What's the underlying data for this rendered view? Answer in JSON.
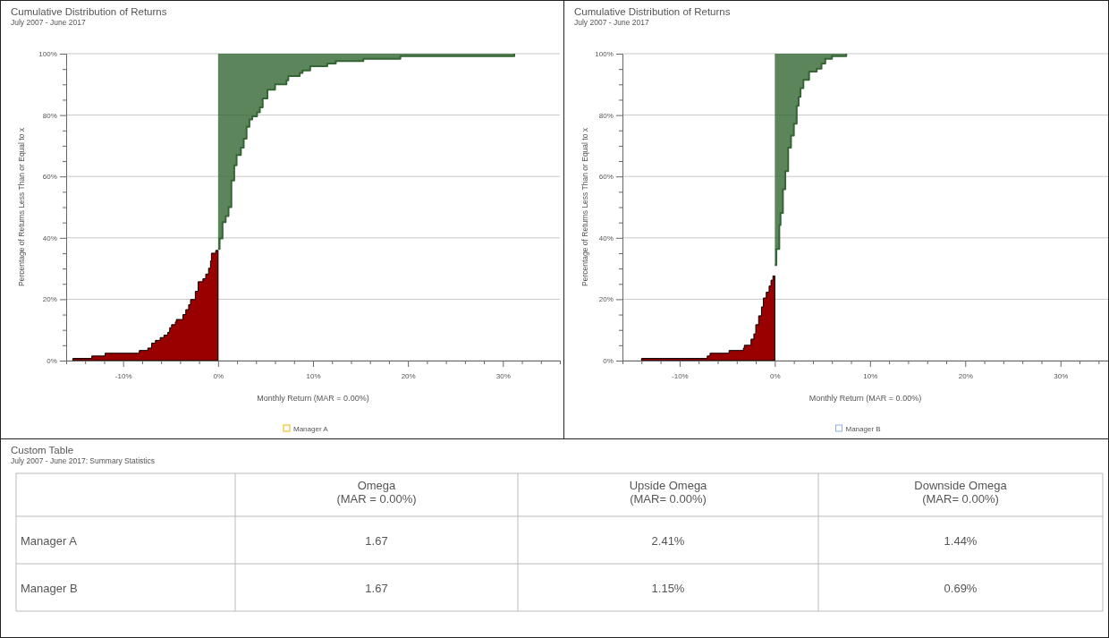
{
  "chart_data": [
    {
      "type": "step",
      "title": "Cumulative Distribution of Returns",
      "subtitle": "July 2007 - June 2017",
      "xlabel": "Monthly Return (MAR = 0.00%)",
      "ylabel": "Percentage of Returns Less Than or Equal to x",
      "annotations": [
        "Manager A"
      ],
      "grid": "y",
      "xlim": [
        -16,
        36
      ],
      "ylim": [
        0,
        100
      ],
      "xticks": [
        {
          "value": -16,
          "label": null
        },
        {
          "value": -14,
          "label": null
        },
        {
          "value": -12,
          "label": null
        },
        {
          "value": -10,
          "label": "-10%"
        },
        {
          "value": -8,
          "label": null
        },
        {
          "value": -6,
          "label": null
        },
        {
          "value": -4,
          "label": null
        },
        {
          "value": -2,
          "label": null
        },
        {
          "value": 0,
          "label": "0%"
        },
        {
          "value": 2,
          "label": null
        },
        {
          "value": 4,
          "label": null
        },
        {
          "value": 6,
          "label": null
        },
        {
          "value": 8,
          "label": null
        },
        {
          "value": 10,
          "label": "10%"
        },
        {
          "value": 12,
          "label": null
        },
        {
          "value": 14,
          "label": null
        },
        {
          "value": 16,
          "label": null
        },
        {
          "value": 18,
          "label": null
        },
        {
          "value": 20,
          "label": "20%"
        },
        {
          "value": 22,
          "label": null
        },
        {
          "value": 24,
          "label": null
        },
        {
          "value": 26,
          "label": null
        },
        {
          "value": 28,
          "label": null
        },
        {
          "value": 30,
          "label": "30%"
        },
        {
          "value": 32,
          "label": null
        },
        {
          "value": 34,
          "label": null
        },
        {
          "value": 36,
          "label": null
        }
      ],
      "yticks": [
        {
          "value": 0,
          "label": "0%"
        },
        {
          "value": 5,
          "label": null
        },
        {
          "value": 10,
          "label": null
        },
        {
          "value": 15,
          "label": null
        },
        {
          "value": 20,
          "label": "20%"
        },
        {
          "value": 25,
          "label": null
        },
        {
          "value": 30,
          "label": null
        },
        {
          "value": 35,
          "label": null
        },
        {
          "value": 40,
          "label": "40%"
        },
        {
          "value": 45,
          "label": null
        },
        {
          "value": 50,
          "label": null
        },
        {
          "value": 55,
          "label": null
        },
        {
          "value": 60,
          "label": "60%"
        },
        {
          "value": 65,
          "label": null
        },
        {
          "value": 70,
          "label": null
        },
        {
          "value": 75,
          "label": null
        },
        {
          "value": 80,
          "label": "80%"
        },
        {
          "value": 85,
          "label": null
        },
        {
          "value": 90,
          "label": null
        },
        {
          "value": 95,
          "label": null
        },
        {
          "value": 100,
          "label": "100%"
        }
      ],
      "series": [
        {
          "type": "area",
          "color": "#990000",
          "x": [
            -15.3,
            -13.3,
            -11.9,
            -8.3,
            -7.4,
            -7.0,
            -6.6,
            -6.1,
            -5.7,
            -5.3,
            -5.1,
            -4.9,
            -4.5,
            -4.4,
            -3.7,
            -3.4,
            -3.1,
            -2.9,
            -2.4,
            -2.1,
            -1.6,
            -1.3,
            -1.0,
            -0.8,
            -0.7,
            -0.25,
            0
          ],
          "values": [
            0.7,
            1.5,
            2.4,
            3.3,
            4.1,
            5.7,
            6.6,
            7.5,
            8.3,
            9.2,
            10.7,
            11.7,
            12.6,
            13.4,
            15.0,
            16.6,
            18.2,
            19.9,
            22.6,
            25.7,
            26.7,
            28.2,
            30.1,
            32.5,
            35.0,
            35.9,
            35.9
          ]
        },
        {
          "type": "step",
          "color": "#336633",
          "x": [
            0,
            0.16,
            0.47,
            0.8,
            1.1,
            1.4,
            1.7,
            1.95,
            2.4,
            2.7,
            3.0,
            3.3,
            3.6,
            4.1,
            4.4,
            4.7,
            5.2,
            6.0,
            7.2,
            7.4,
            8.6,
            8.9,
            9.7,
            11.5,
            12.4,
            15.3,
            19.2,
            31.2
          ],
          "values": [
            36.4,
            39.8,
            45.1,
            47.1,
            50.0,
            58.7,
            63.6,
            67.0,
            69.4,
            72.3,
            76.2,
            78.6,
            79.6,
            80.9,
            82.5,
            85.4,
            88.3,
            90.0,
            91.3,
            92.7,
            93.7,
            94.5,
            95.9,
            96.8,
            97.6,
            98.3,
            99.2,
            100
          ],
          "lower": [
            36.4,
            39.8,
            45.1,
            47.1,
            50.0,
            58.7,
            63.6,
            67.0,
            69.4,
            72.3,
            76.2,
            78.6,
            79.6,
            80.9,
            82.5,
            85.4,
            88.3,
            90.0,
            91.3,
            92.7,
            93.7,
            94.5,
            95.9,
            96.8,
            97.6,
            98.3,
            99.2,
            100
          ],
          "upper": [
            100,
            100,
            100,
            100,
            100,
            100,
            100,
            100,
            100,
            100,
            100,
            100,
            100,
            100,
            100,
            100,
            100,
            100,
            100,
            100,
            100,
            100,
            100,
            100,
            100,
            100,
            100,
            100
          ]
        }
      ]
    },
    {
      "type": "step",
      "title": "Cumulative Distribution of Returns",
      "subtitle": "July 2007 - June 2017",
      "xlabel": "Monthly Return (MAR = 0.00%)",
      "ylabel": "Percentage of Returns Less Than or Equal to x",
      "annotations": [
        "Manager B"
      ],
      "grid": "y",
      "xlim": [
        -16,
        35
      ],
      "ylim": [
        0,
        100
      ],
      "xticks": [
        {
          "value": -16,
          "label": null
        },
        {
          "value": -14,
          "label": null
        },
        {
          "value": -12,
          "label": null
        },
        {
          "value": -10,
          "label": "-10%"
        },
        {
          "value": -8,
          "label": null
        },
        {
          "value": -6,
          "label": null
        },
        {
          "value": -4,
          "label": null
        },
        {
          "value": -2,
          "label": null
        },
        {
          "value": 0,
          "label": "0%"
        },
        {
          "value": 2,
          "label": null
        },
        {
          "value": 4,
          "label": null
        },
        {
          "value": 6,
          "label": null
        },
        {
          "value": 8,
          "label": null
        },
        {
          "value": 10,
          "label": "10%"
        },
        {
          "value": 12,
          "label": null
        },
        {
          "value": 14,
          "label": null
        },
        {
          "value": 16,
          "label": null
        },
        {
          "value": 18,
          "label": null
        },
        {
          "value": 20,
          "label": "20%"
        },
        {
          "value": 22,
          "label": null
        },
        {
          "value": 24,
          "label": null
        },
        {
          "value": 26,
          "label": null
        },
        {
          "value": 28,
          "label": null
        },
        {
          "value": 30,
          "label": "30%"
        },
        {
          "value": 32,
          "label": null
        },
        {
          "value": 34,
          "label": null
        }
      ],
      "yticks": [
        {
          "value": 0,
          "label": "0%"
        },
        {
          "value": 5,
          "label": null
        },
        {
          "value": 10,
          "label": null
        },
        {
          "value": 15,
          "label": null
        },
        {
          "value": 20,
          "label": "20%"
        },
        {
          "value": 25,
          "label": null
        },
        {
          "value": 30,
          "label": null
        },
        {
          "value": 35,
          "label": null
        },
        {
          "value": 40,
          "label": "40%"
        },
        {
          "value": 45,
          "label": null
        },
        {
          "value": 50,
          "label": null
        },
        {
          "value": 55,
          "label": null
        },
        {
          "value": 60,
          "label": "60%"
        },
        {
          "value": 65,
          "label": null
        },
        {
          "value": 70,
          "label": null
        },
        {
          "value": 75,
          "label": null
        },
        {
          "value": 80,
          "label": "80%"
        },
        {
          "value": 85,
          "label": null
        },
        {
          "value": 90,
          "label": null
        },
        {
          "value": 95,
          "label": null
        },
        {
          "value": 100,
          "label": "100%"
        }
      ],
      "series": [
        {
          "type": "area",
          "color": "#990000",
          "x": [
            -14.0,
            -7.1,
            -6.8,
            -4.8,
            -3.3,
            -3.2,
            -2.5,
            -2.2,
            -2.0,
            -1.7,
            -1.4,
            -1.2,
            -0.9,
            -0.6,
            -0.4,
            -0.2,
            0
          ],
          "values": [
            0.7,
            1.5,
            2.4,
            3.3,
            4.1,
            5.0,
            7.0,
            8.7,
            11.7,
            14.6,
            17.5,
            20.4,
            22.3,
            24.3,
            26.2,
            27.6,
            27.6
          ]
        },
        {
          "type": "step",
          "color": "#336633",
          "x": [
            0,
            0.16,
            0.47,
            0.6,
            0.85,
            1.1,
            1.4,
            1.7,
            2.0,
            2.3,
            2.5,
            2.7,
            3.0,
            3.6,
            4.4,
            4.9,
            5.3,
            6.0,
            7.5
          ],
          "values": [
            31.1,
            36.4,
            44.2,
            48.1,
            55.8,
            61.7,
            69.4,
            73.3,
            77.2,
            83.0,
            85.9,
            88.8,
            91.5,
            94.2,
            95.1,
            96.8,
            98.3,
            99.2,
            100
          ],
          "lower": [
            31.1,
            36.4,
            44.2,
            48.1,
            55.8,
            61.7,
            69.4,
            73.3,
            77.2,
            83.0,
            85.9,
            88.8,
            91.5,
            94.2,
            95.1,
            96.8,
            98.3,
            99.2,
            100
          ],
          "upper": [
            100,
            100,
            100,
            100,
            100,
            100,
            100,
            100,
            100,
            100,
            100,
            100,
            100,
            100,
            100,
            100,
            100,
            100,
            100
          ]
        }
      ]
    },
    {
      "type": "other",
      "title": "Custom Table",
      "subtitle": "July 2007 - June 2017:  Summary Statistics",
      "categories": [
        "Omega\n(MAR = 0.00%)",
        "Upside Omega\n(MAR= 0.00%)",
        "Downside Omega\n(MAR= 0.00%)"
      ],
      "y_categories": [
        "Manager A",
        "Manager B"
      ],
      "cells": [
        [
          "1.67",
          "2.41%",
          "1.44%"
        ],
        [
          "1.67",
          "1.15%",
          "0.69%"
        ]
      ]
    }
  ]
}
